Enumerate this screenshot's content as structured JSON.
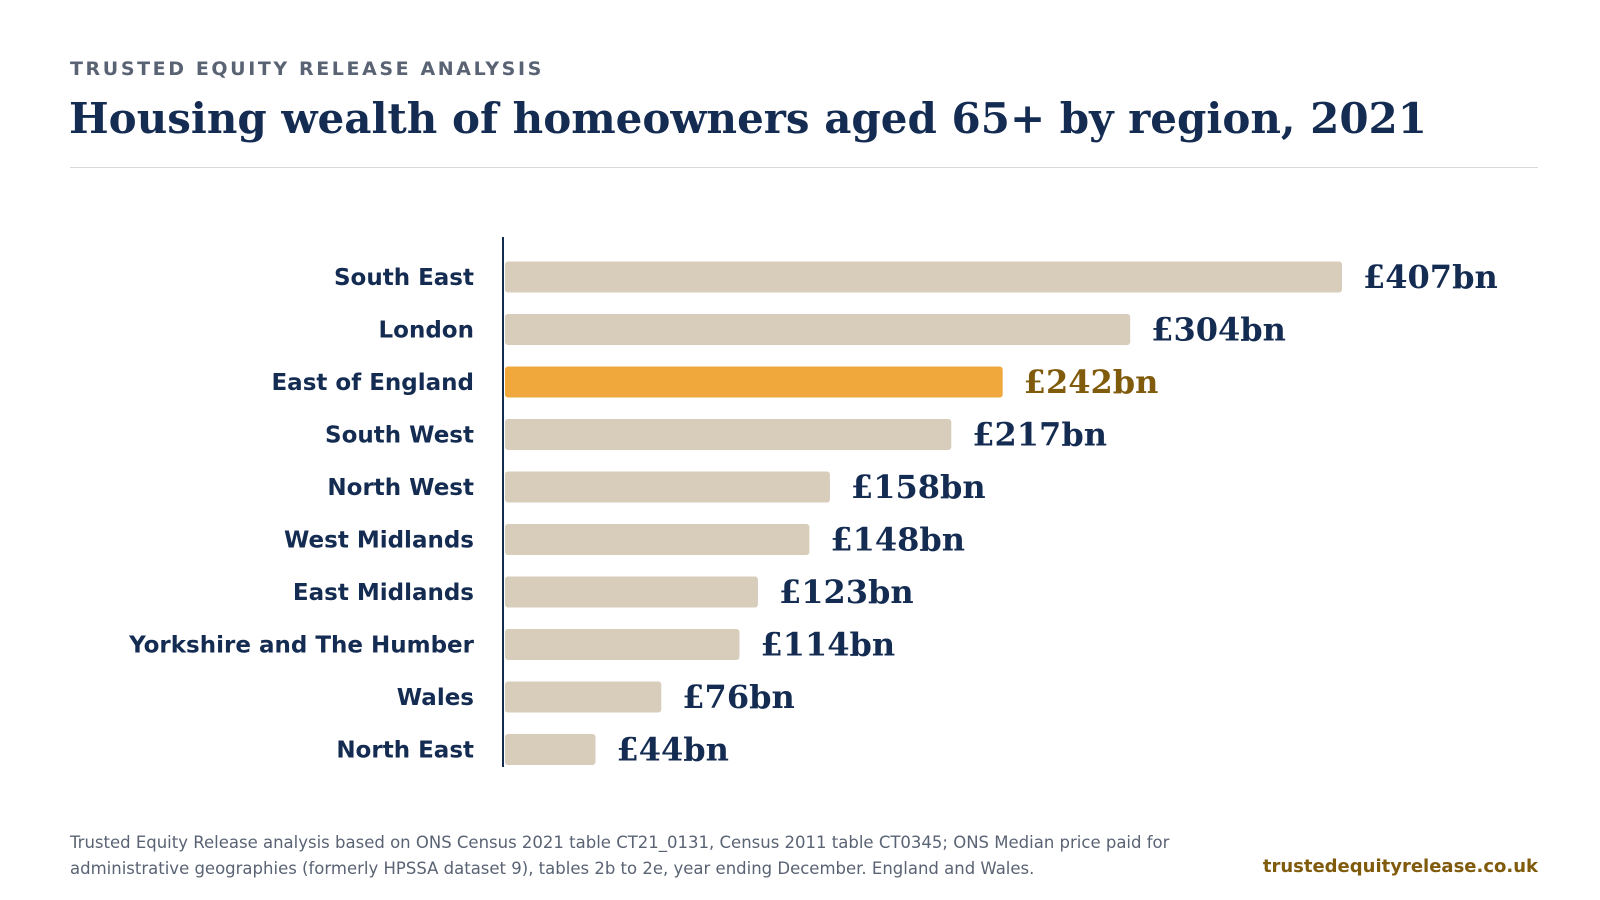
{
  "header": {
    "kicker": "TRUSTED EQUITY RELEASE ANALYSIS",
    "title": "Housing wealth of homeowners aged 65+ by region, 2021"
  },
  "footer": {
    "source": "Trusted Equity Release analysis based on ONS Census 2021 table CT21_0131, Census 2011 table CT0345; ONS Median price paid for administrative geographies (formerly HPSSA dataset 9), tables 2b to 2e, year ending December. England and Wales.",
    "website": "trustedequityrelease.co.uk"
  },
  "chart_data": {
    "type": "bar",
    "orientation": "horizontal",
    "categories": [
      "South East",
      "London",
      "East of England",
      "South West",
      "North West",
      "West Midlands",
      "East Midlands",
      "Yorkshire and The Humber",
      "Wales",
      "North East"
    ],
    "values": [
      407,
      304,
      242,
      217,
      158,
      148,
      123,
      114,
      76,
      44
    ],
    "value_labels": [
      "£407bn",
      "£304bn",
      "£242bn",
      "£217bn",
      "£158bn",
      "£148bn",
      "£123bn",
      "£114bn",
      "£76bn",
      "£44bn"
    ],
    "unit": "£bn",
    "highlight_category": "East of England",
    "xlim": [
      0,
      407
    ],
    "grid": false,
    "legend": "none",
    "colors": {
      "bar": "#d8ccbb",
      "highlight_bar": "#f0a73b",
      "label": "#152c52",
      "highlight_label": "#7f5b0b",
      "axis": "#152c52"
    }
  }
}
